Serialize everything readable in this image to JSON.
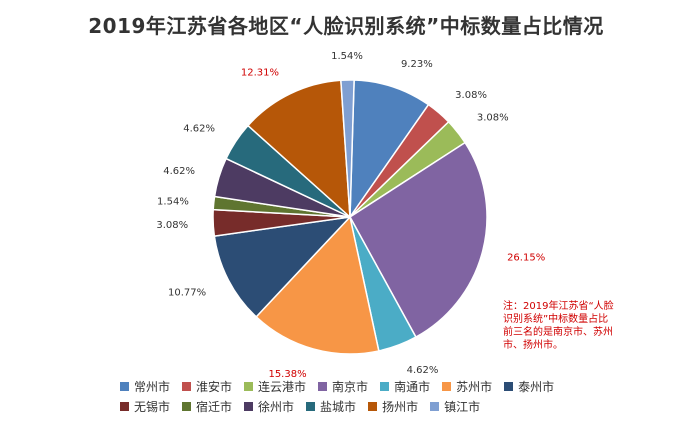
{
  "title": "2019年江苏省各地区“人脸识别系统”中标数量占比情况",
  "note": "注：2019年江苏省“人脸识别系统”中标数量占比前三名的是南京市、苏州市、扬州市。",
  "chart_data": {
    "type": "pie",
    "title": "2019年江苏省各地区“人脸识别系统”中标数量占比情况",
    "legend_position": "bottom",
    "slices": [
      {
        "name": "常州市",
        "value": 9.23,
        "label": "9.23%",
        "color": "#4f81bd",
        "highlight": false
      },
      {
        "name": "淮安市",
        "value": 3.08,
        "label": "3.08%",
        "color": "#c0504d",
        "highlight": false
      },
      {
        "name": "连云港市",
        "value": 3.08,
        "label": "3.08%",
        "color": "#9bbb59",
        "highlight": false
      },
      {
        "name": "南京市",
        "value": 26.15,
        "label": "26.15%",
        "color": "#8064a2",
        "highlight": true
      },
      {
        "name": "南通市",
        "value": 4.62,
        "label": "4.62%",
        "color": "#4bacc6",
        "highlight": false
      },
      {
        "name": "苏州市",
        "value": 15.38,
        "label": "15.38%",
        "color": "#f79646",
        "highlight": true
      },
      {
        "name": "泰州市",
        "value": 10.77,
        "label": "10.77%",
        "color": "#2c4d75",
        "highlight": false
      },
      {
        "name": "无锡市",
        "value": 3.08,
        "label": "3.08%",
        "color": "#772c2a",
        "highlight": false
      },
      {
        "name": "宿迁市",
        "value": 1.54,
        "label": "1.54%",
        "color": "#5f7530",
        "highlight": false
      },
      {
        "name": "徐州市",
        "value": 4.62,
        "label": "4.62%",
        "color": "#4d3b62",
        "highlight": false
      },
      {
        "name": "盐城市",
        "value": 4.62,
        "label": "4.62%",
        "color": "#276a7c",
        "highlight": false
      },
      {
        "name": "扬州市",
        "value": 12.31,
        "label": "12.31%",
        "color": "#b65708",
        "highlight": true
      },
      {
        "name": "镇江市",
        "value": 1.54,
        "label": "1.54%",
        "color": "#7f9fd2",
        "highlight": false
      }
    ]
  }
}
